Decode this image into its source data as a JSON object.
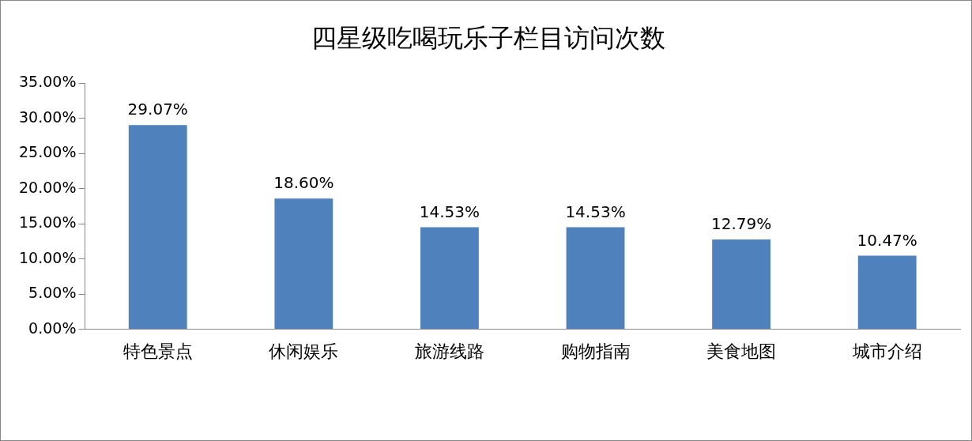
{
  "chart_data": {
    "type": "bar",
    "title": "四星级吃喝玩乐子栏目访问次数",
    "categories": [
      "特色景点",
      "休闲娱乐",
      "旅游线路",
      "购物指南",
      "美食地图",
      "城市介绍"
    ],
    "values": [
      29.07,
      18.6,
      14.53,
      14.53,
      12.79,
      10.47
    ],
    "value_labels": [
      "29.07%",
      "18.60%",
      "14.53%",
      "14.53%",
      "12.79%",
      "10.47%"
    ],
    "color": "#4f81bd",
    "ylim": [
      0,
      35
    ],
    "yticks": [
      {
        "value": 0,
        "label": "0.00%"
      },
      {
        "value": 5,
        "label": "5.00%"
      },
      {
        "value": 10,
        "label": "10.00%"
      },
      {
        "value": 15,
        "label": "15.00%"
      },
      {
        "value": 20,
        "label": "20.00%"
      },
      {
        "value": 25,
        "label": "25.00%"
      },
      {
        "value": 30,
        "label": "30.00%"
      },
      {
        "value": 35,
        "label": "35.00%"
      }
    ],
    "grid": false,
    "legend": false
  }
}
